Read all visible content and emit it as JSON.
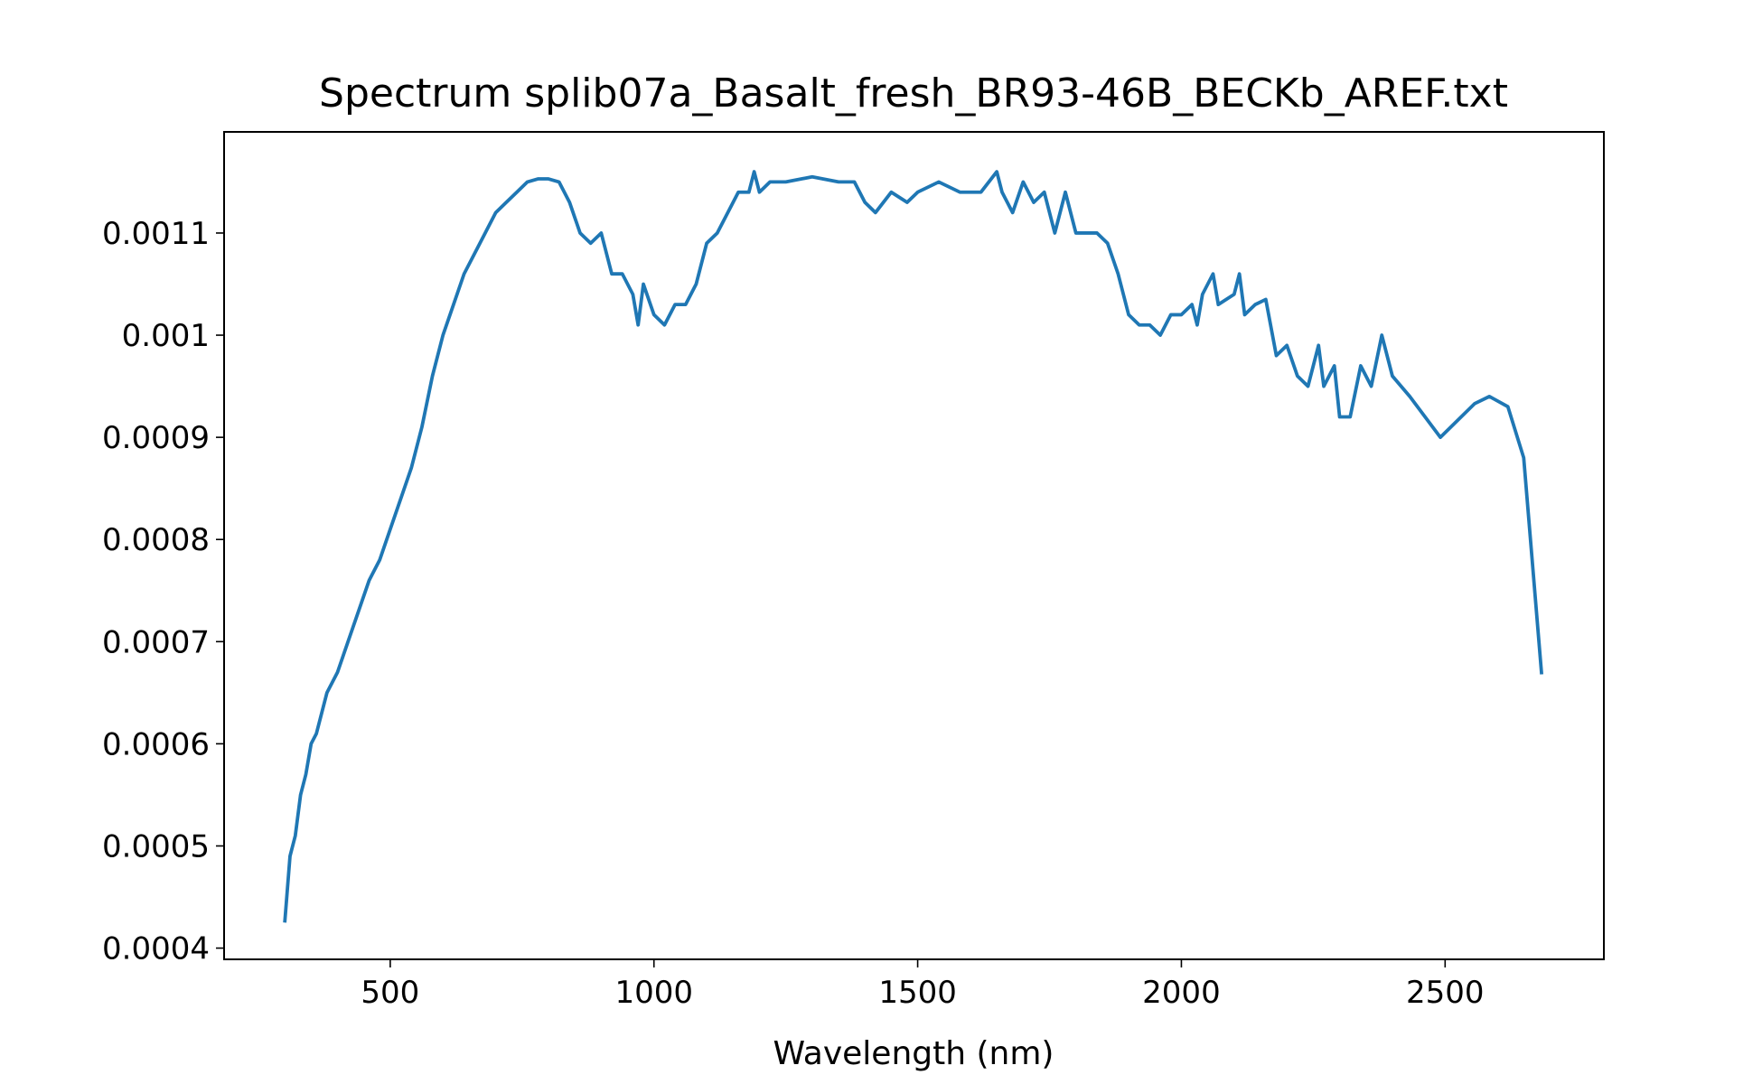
{
  "chart_data": {
    "type": "line",
    "title": "Spectrum splib07a_Basalt_fresh_BR93-46B_BECKb_AREF.txt",
    "x_label": "Wavelength (nm)",
    "color": "#1f77b4",
    "x": [
      300,
      310,
      320,
      330,
      340,
      350,
      360,
      380,
      400,
      420,
      440,
      460,
      480,
      500,
      520,
      540,
      560,
      580,
      600,
      620,
      640,
      660,
      680,
      700,
      720,
      740,
      760,
      780,
      800,
      820,
      840,
      860,
      880,
      900,
      920,
      940,
      960,
      970,
      980,
      1000,
      1020,
      1040,
      1060,
      1080,
      1100,
      1120,
      1140,
      1160,
      1180,
      1190,
      1200,
      1220,
      1250,
      1300,
      1350,
      1380,
      1400,
      1420,
      1450,
      1480,
      1500,
      1540,
      1580,
      1620,
      1650,
      1660,
      1680,
      1700,
      1720,
      1740,
      1760,
      1780,
      1800,
      1840,
      1860,
      1880,
      1900,
      1920,
      1940,
      1960,
      1980,
      2000,
      2020,
      2030,
      2040,
      2060,
      2070,
      2100,
      2110,
      2120,
      2140,
      2160,
      2180,
      2200,
      2220,
      2240,
      2260,
      2270,
      2290,
      2300,
      2320,
      2340,
      2360,
      2380,
      2400,
      2433,
      2491,
      2556,
      2584,
      2619,
      2649,
      2683
    ],
    "values": [
      0.000425,
      0.00049,
      0.00051,
      0.00055,
      0.00057,
      0.0006,
      0.00061,
      0.00065,
      0.00067,
      0.0007,
      0.00073,
      0.00076,
      0.00078,
      0.00081,
      0.00084,
      0.00087,
      0.00091,
      0.00096,
      0.001,
      0.00103,
      0.00106,
      0.00108,
      0.0011,
      0.00112,
      0.00113,
      0.00114,
      0.00115,
      0.001153,
      0.001153,
      0.00115,
      0.00113,
      0.0011,
      0.00109,
      0.0011,
      0.00106,
      0.00106,
      0.00104,
      0.00101,
      0.00105,
      0.00102,
      0.00101,
      0.00103,
      0.00103,
      0.00105,
      0.00109,
      0.0011,
      0.00112,
      0.00114,
      0.00114,
      0.00116,
      0.00114,
      0.00115,
      0.00115,
      0.001155,
      0.00115,
      0.00115,
      0.00113,
      0.00112,
      0.00114,
      0.00113,
      0.00114,
      0.00115,
      0.00114,
      0.00114,
      0.00116,
      0.00114,
      0.00112,
      0.00115,
      0.00113,
      0.00114,
      0.0011,
      0.00114,
      0.0011,
      0.0011,
      0.00109,
      0.00106,
      0.00102,
      0.00101,
      0.00101,
      0.001,
      0.00102,
      0.00102,
      0.00103,
      0.00101,
      0.00104,
      0.00106,
      0.00103,
      0.00104,
      0.00106,
      0.00102,
      0.00103,
      0.001035,
      0.00098,
      0.00099,
      0.00096,
      0.00095,
      0.00099,
      0.00095,
      0.00097,
      0.00092,
      0.00092,
      0.00097,
      0.00095,
      0.001,
      0.00096,
      0.00094,
      0.0009,
      0.000933,
      0.00094,
      0.00093,
      0.00088,
      0.000668
    ],
    "xlim": [
      185,
      2801
    ],
    "ylim": [
      0.000389,
      0.001199
    ],
    "xticks": [
      500,
      1000,
      1500,
      2000,
      2500
    ],
    "yticks": [
      0.0004,
      0.0005,
      0.0006,
      0.0007,
      0.0008,
      0.0009,
      0.001,
      0.0011
    ],
    "grid": false
  }
}
